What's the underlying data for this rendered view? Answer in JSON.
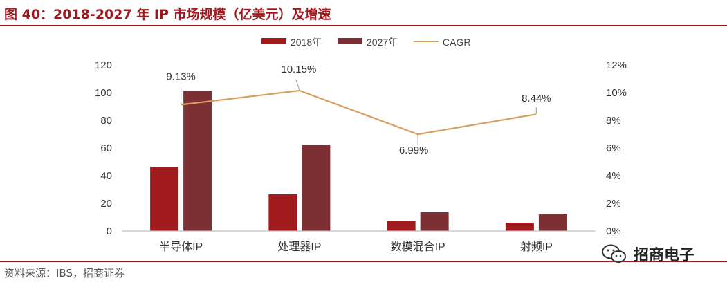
{
  "figure": {
    "title": "图 40：2018-2027 年 IP 市场规模（亿美元）及增速",
    "source": "资料来源：IBS，招商证券",
    "watermark": "招商电子",
    "watermark_icon": "wechat-icon"
  },
  "colors": {
    "accent": "#a0191e",
    "series_2018": "#a01a1e",
    "series_2027": "#7c3034",
    "cagr_line": "#d6a05c",
    "axis_text": "#333333",
    "axis_line": "#bfbfbf"
  },
  "chart_data": {
    "type": "bar",
    "categories": [
      "半导体IP",
      "处理器IP",
      "数模混合IP",
      "射频IP"
    ],
    "series": [
      {
        "name": "2018年",
        "type": "bar",
        "axis": "left",
        "values": [
          46.5,
          26.5,
          7.5,
          6
        ]
      },
      {
        "name": "2027年",
        "type": "bar",
        "axis": "left",
        "values": [
          101,
          62.5,
          13.5,
          12
        ]
      },
      {
        "name": "CAGR",
        "type": "line",
        "axis": "right",
        "values": [
          9.13,
          10.15,
          6.99,
          8.44
        ]
      }
    ],
    "data_labels": [
      "9.13%",
      "10.15%",
      "6.99%",
      "8.44%"
    ],
    "left_axis": {
      "ylim": [
        0,
        120
      ],
      "ticks": [
        "0",
        "20",
        "40",
        "60",
        "80",
        "100",
        "120"
      ]
    },
    "right_axis": {
      "ylim": [
        0,
        12
      ],
      "ticks": [
        "0%",
        "2%",
        "4%",
        "6%",
        "8%",
        "10%",
        "12%"
      ]
    },
    "legend_position": "top-center",
    "grid": false
  }
}
